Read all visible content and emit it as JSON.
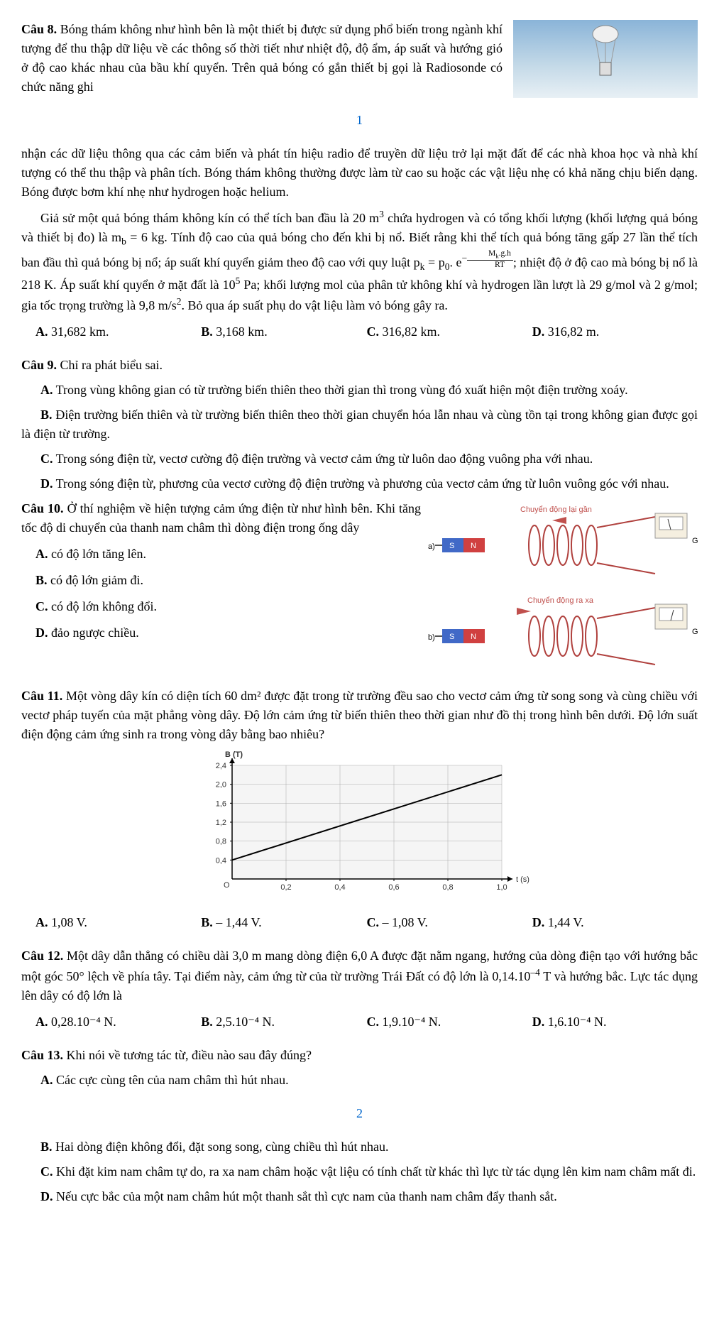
{
  "q8": {
    "header": "Câu 8.",
    "body1": " Bóng thám không như hình bên là một thiết bị được sử dụng phổ biến trong ngành khí tượng để thu thập dữ liệu về các thông số thời tiết như nhiệt độ, độ ẩm, áp suất và hướng gió ở độ cao khác nhau của bầu khí quyển. Trên quả bóng có gắn thiết bị gọi là Radiosonde có chức năng ghi",
    "body2": "nhận các dữ liệu thông qua các cảm biến và phát tín hiệu radio để truyền dữ liệu trở lại mặt đất để các nhà khoa học và nhà khí tượng có thể thu thập và phân tích. Bóng thám không thường được làm từ cao su hoặc các vật liệu nhẹ có khả năng chịu biến dạng. Bóng được bơm khí nhẹ như hydrogen hoặc helium.",
    "body3a": "Giả sử một quả bóng thám không kín có thể tích ban đầu là 20 m",
    "body3b": " chứa hydrogen và có tổng khối lượng (khối lượng quả bóng và thiết bị đo) là m",
    "body3c": " = 6 kg. Tính độ cao của quả bóng cho đến khi bị nổ. Biết rằng khi thể tích quả bóng tăng gấp 27 lần thể tích ban đầu thì quả bóng bị nổ; áp suất khí quyển giảm theo độ cao với quy luật p",
    "body3d": " = p",
    "body3e": ". e",
    "body3f": "; nhiệt độ ở độ cao mà bóng bị nổ là 218 K. Áp suất khí quyển ở mặt đất là 10",
    "body3g": " Pa; khối lượng mol của phân tử không khí và hydrogen lần lượt là 29 g/mol và 2 g/mol; gia tốc trọng trường là 9,8 m/s",
    "body3h": ". Bỏ qua áp suất phụ do vật liệu làm vỏ bóng gây ra.",
    "frac_num": "M",
    "frac_num_sub": "k",
    "frac_num_rest": ".g.h",
    "frac_den": "RT",
    "optA": "31,682 km.",
    "optB": "3,168 km.",
    "optC": "316,82 km.",
    "optD": "316,82 m."
  },
  "page1": "1",
  "q9": {
    "header": "Câu 9.",
    "body": " Chỉ ra phát biểu sai.",
    "optA": " Trong vùng không gian có từ trường biến thiên theo thời gian thì trong vùng đó xuất hiện một điện trường xoáy.",
    "optB": " Điện trường biến thiên và từ trường biến thiên theo thời gian chuyển hóa lẫn nhau và cùng tồn tại trong không gian được gọi là điện từ trường.",
    "optC": " Trong sóng điện từ, vectơ cường độ điện trường và vectơ cảm ứng từ luôn dao động vuông pha với nhau.",
    "optD": " Trong sóng điện từ, phương của vectơ cường độ điện trường và phương của vectơ cảm ứng từ luôn vuông góc với nhau."
  },
  "q10": {
    "header": "Câu 10.",
    "body": " Ở thí nghiệm về hiện tượng cảm ứng điện từ như hình bên. Khi tăng tốc độ di chuyển của thanh nam châm thì dòng điện trong ống dây",
    "optA": " có độ lớn tăng lên.",
    "optB": " có độ lớn giảm đi.",
    "optC": " có độ lớn không đổi.",
    "optD": " đảo ngược chiều.",
    "label_a_title": "Chuyển động lại gần",
    "label_b_title": "Chuyển động ra xa",
    "label_a": "a)",
    "label_b": "b)",
    "magnet_S": "S",
    "magnet_N": "N",
    "galv": "G"
  },
  "q11": {
    "header": "Câu 11.",
    "body": " Một vòng dây kín có diện tích 60 dm² được đặt trong từ trường đều sao cho vectơ cảm ứng từ song song và cùng chiều với vectơ pháp tuyến của mặt phẳng vòng dây. Độ lớn cảm ứng từ biến thiên theo thời gian như đồ thị trong hình bên dưới. Độ lớn suất điện động cảm ứng sinh ra trong vòng dây bằng bao nhiêu?",
    "optA": "1,08 V.",
    "optB": "– 1,44 V.",
    "optC": "– 1,08 V.",
    "optD": "1,44 V.",
    "chart": {
      "ylabel": "B (T)",
      "xlabel": "t (s)",
      "yticks": [
        "0,4",
        "0,8",
        "1,2",
        "1,6",
        "2,0",
        "2,4"
      ],
      "xticks": [
        "0,2",
        "0,4",
        "0,6",
        "0,8",
        "1,0"
      ],
      "origin": "O",
      "data_x": [
        0,
        1
      ],
      "data_y": [
        0.4,
        2.2
      ],
      "axis_color": "#000",
      "grid_color": "#aaa",
      "line_color": "#000",
      "bg": "#f5f5f5"
    }
  },
  "q12": {
    "header": "Câu 12.",
    "body1": " Một dây dẫn thẳng có chiều dài 3,0 m mang dòng điện 6,0 A được đặt nằm ngang, hướng của dòng điện tạo với hướng bắc một góc 50° lệch về phía tây. Tại điểm này, cảm ứng từ của từ trường Trái Đất có độ lớn là 0,14.10",
    "body2": " T và hướng bắc. Lực tác dụng lên dây có độ lớn là",
    "optA": "0,28.10⁻⁴ N.",
    "optB": "2,5.10⁻⁴ N.",
    "optC": "1,9.10⁻⁴ N.",
    "optD": "1,6.10⁻⁴ N."
  },
  "q13": {
    "header": "Câu 13.",
    "body": " Khi nói về tương tác từ, điều nào sau đây đúng?",
    "optA": " Các cực cùng tên của nam châm thì hút nhau.",
    "optB": " Hai dòng điện không đổi, đặt song song, cùng chiều thì hút nhau.",
    "optC": " Khi đặt kim nam châm tự do, ra xa nam châm hoặc vật liệu có tính chất từ khác thì lực từ tác dụng lên kim nam châm mất đi.",
    "optD": " Nếu cực bắc của một nam châm hút một thanh sắt thì cực nam của thanh nam châm đẩy thanh sắt."
  },
  "page2": "2"
}
